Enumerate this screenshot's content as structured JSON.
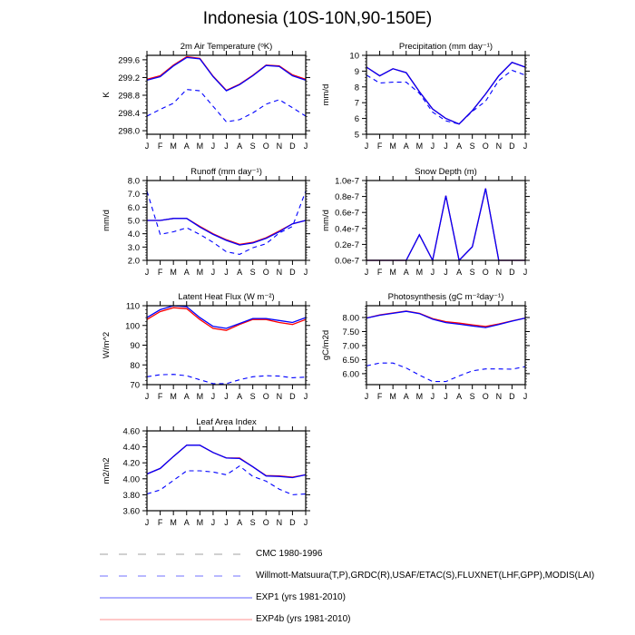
{
  "title": "Indonesia (10S-10N,90-150E)",
  "months": [
    "J",
    "F",
    "M",
    "A",
    "M",
    "J",
    "J",
    "A",
    "S",
    "O",
    "N",
    "D",
    "J"
  ],
  "colors": {
    "exp1": "#0000ff",
    "exp4b": "#ff0000",
    "obs": "#0000ff",
    "cmc": "#999999"
  },
  "legend": [
    {
      "label": "CMC 1980-1996",
      "style": "dashed",
      "color": "#a0a0a0"
    },
    {
      "label": "Willmott-Matsuura(T,P),GRDC(R),USAF/ETAC(S),FLUXNET(LHF,GPP),MODIS(LAI)",
      "style": "dashed",
      "color": "#7070ff"
    },
    {
      "label": "EXP1 (yrs 1981-2010)",
      "style": "solid",
      "color": "#6060ff"
    },
    {
      "label": "EXP4b (yrs 1981-2010)",
      "style": "solid",
      "color": "#ff9090"
    }
  ],
  "chart_data": [
    {
      "type": "line",
      "title": "2m Air Temperature (ᵒK)",
      "ylabel": "K",
      "ylim": [
        297.92,
        299.7
      ],
      "yticks": [
        298.0,
        298.4,
        298.8,
        299.2,
        299.6
      ],
      "ytick_labels": [
        "298.0",
        "298.4",
        "298.8",
        "299.2",
        "299.6"
      ],
      "series": [
        {
          "key": "obs",
          "values": [
            298.33,
            298.48,
            298.62,
            298.93,
            298.9,
            298.55,
            298.2,
            298.25,
            298.4,
            298.6,
            298.7,
            298.52,
            298.33
          ]
        },
        {
          "key": "exp4b",
          "values": [
            299.16,
            299.24,
            299.48,
            299.67,
            299.63,
            299.23,
            298.91,
            299.05,
            299.25,
            299.48,
            299.46,
            299.26,
            299.16
          ]
        },
        {
          "key": "exp1",
          "values": [
            299.14,
            299.22,
            299.46,
            299.65,
            299.62,
            299.22,
            298.9,
            299.04,
            299.24,
            299.47,
            299.45,
            299.24,
            299.14
          ]
        }
      ]
    },
    {
      "type": "line",
      "title": "Precipitation (mm day⁻¹)",
      "ylabel": "mm/d",
      "ylim": [
        5,
        10
      ],
      "yticks": [
        5,
        6,
        7,
        8,
        9,
        10
      ],
      "ytick_labels": [
        "5",
        "6",
        "7",
        "8",
        "9",
        "10"
      ],
      "series": [
        {
          "key": "obs",
          "values": [
            8.75,
            8.25,
            8.3,
            8.3,
            7.6,
            6.4,
            5.85,
            5.65,
            6.45,
            7.1,
            8.4,
            9.05,
            8.75
          ]
        },
        {
          "key": "exp4b",
          "values": [
            9.25,
            8.7,
            9.15,
            8.9,
            7.7,
            6.6,
            6.0,
            5.65,
            6.5,
            7.55,
            8.7,
            9.55,
            9.25
          ]
        },
        {
          "key": "exp1",
          "values": [
            9.25,
            8.7,
            9.15,
            8.9,
            7.7,
            6.6,
            6.0,
            5.65,
            6.5,
            7.55,
            8.7,
            9.55,
            9.25
          ]
        }
      ]
    },
    {
      "type": "line",
      "title": "Runoff (mm day⁻¹)",
      "ylabel": "mm/d",
      "ylim": [
        2,
        8
      ],
      "yticks": [
        2,
        3,
        4,
        5,
        6,
        7,
        8
      ],
      "ytick_labels": [
        "2.0",
        "3.0",
        "4.0",
        "5.0",
        "6.0",
        "7.0",
        "8.0"
      ],
      "series": [
        {
          "key": "obs",
          "values": [
            7.2,
            3.95,
            4.15,
            4.45,
            3.95,
            3.35,
            2.65,
            2.45,
            2.95,
            3.25,
            4.05,
            4.55,
            7.2
          ]
        },
        {
          "key": "exp4b",
          "values": [
            5.0,
            5.0,
            5.15,
            5.15,
            4.55,
            4.0,
            3.55,
            3.2,
            3.35,
            3.7,
            4.2,
            4.75,
            5.0
          ]
        },
        {
          "key": "exp1",
          "values": [
            5.0,
            5.0,
            5.15,
            5.15,
            4.5,
            3.95,
            3.5,
            3.15,
            3.3,
            3.65,
            4.15,
            4.75,
            5.0
          ]
        }
      ]
    },
    {
      "type": "line",
      "title": "Snow Depth (m)",
      "ylabel": "mm/d",
      "ylim": [
        0,
        1e-07
      ],
      "yticks": [
        0,
        2e-08,
        4e-08,
        6e-08,
        8e-08,
        1e-07
      ],
      "ytick_labels": [
        "0.0e-7",
        "0.2e-7",
        "0.4e-7",
        "0.6e-7",
        "0.8e-7",
        "1.0e-7"
      ],
      "series": [
        {
          "key": "exp4b",
          "values": [
            0,
            0,
            0,
            0,
            3.2e-08,
            0,
            8.1e-08,
            0,
            1.7e-08,
            9e-08,
            0,
            0,
            0
          ]
        },
        {
          "key": "exp1",
          "values": [
            0,
            0,
            0,
            0,
            3.2e-08,
            0,
            8.1e-08,
            0,
            1.7e-08,
            9e-08,
            0,
            0,
            0
          ]
        }
      ]
    },
    {
      "type": "line",
      "title": "Latent Heat Flux (W m⁻²)",
      "ylabel": "W/m^2",
      "ylim": [
        70,
        110
      ],
      "yticks": [
        70,
        80,
        90,
        100,
        110
      ],
      "ytick_labels": [
        "70",
        "80",
        "90",
        "100",
        "110"
      ],
      "series": [
        {
          "key": "obs",
          "values": [
            74,
            75,
            75.2,
            74.5,
            72.5,
            70.5,
            70.5,
            72.5,
            74,
            74.5,
            74.3,
            73.5,
            73.8
          ]
        },
        {
          "key": "exp4b",
          "values": [
            103,
            107,
            109,
            108.5,
            103,
            98.5,
            97.5,
            100.5,
            103,
            103,
            101.5,
            100.5,
            103
          ]
        },
        {
          "key": "exp1",
          "values": [
            104,
            108,
            110,
            109.5,
            104,
            99.5,
            98.5,
            101,
            103.5,
            103.5,
            102.5,
            101.5,
            104
          ]
        }
      ]
    },
    {
      "type": "line",
      "title": "Photosynthesis (gC m⁻²day⁻¹)",
      "ylabel": "gC/m2d",
      "ylim": [
        5.61,
        8.42
      ],
      "yticks": [
        6,
        6.5,
        7,
        7.5,
        8
      ],
      "ytick_labels": [
        "6.00",
        "6.50",
        "7.00",
        "7.50",
        "8.00"
      ],
      "series": [
        {
          "key": "obs",
          "values": [
            6.28,
            6.38,
            6.38,
            6.2,
            5.95,
            5.72,
            5.72,
            5.92,
            6.1,
            6.17,
            6.17,
            6.16,
            6.25
          ]
        },
        {
          "key": "exp4b",
          "values": [
            7.98,
            8.09,
            8.16,
            8.23,
            8.15,
            7.96,
            7.85,
            7.8,
            7.74,
            7.68,
            7.77,
            7.88,
            7.98
          ]
        },
        {
          "key": "exp1",
          "values": [
            7.98,
            8.08,
            8.15,
            8.22,
            8.14,
            7.94,
            7.82,
            7.76,
            7.7,
            7.64,
            7.75,
            7.87,
            7.98
          ]
        }
      ]
    },
    {
      "type": "line",
      "title": "Leaf Area Index",
      "ylabel": "m2/m2",
      "ylim": [
        3.6,
        4.6
      ],
      "yticks": [
        3.6,
        3.8,
        4.0,
        4.2,
        4.4,
        4.6
      ],
      "ytick_labels": [
        "3.60",
        "3.80",
        "4.00",
        "4.20",
        "4.40",
        "4.60"
      ],
      "series": [
        {
          "key": "obs",
          "values": [
            3.81,
            3.86,
            3.98,
            4.1,
            4.1,
            4.085,
            4.05,
            4.16,
            4.03,
            3.97,
            3.87,
            3.8,
            3.81
          ]
        },
        {
          "key": "exp4b",
          "values": [
            4.06,
            4.13,
            4.28,
            4.42,
            4.42,
            4.33,
            4.26,
            4.26,
            4.15,
            4.04,
            4.035,
            4.02,
            4.05
          ]
        },
        {
          "key": "exp1",
          "values": [
            4.06,
            4.13,
            4.28,
            4.42,
            4.42,
            4.33,
            4.26,
            4.255,
            4.15,
            4.035,
            4.03,
            4.015,
            4.05
          ]
        }
      ]
    }
  ]
}
